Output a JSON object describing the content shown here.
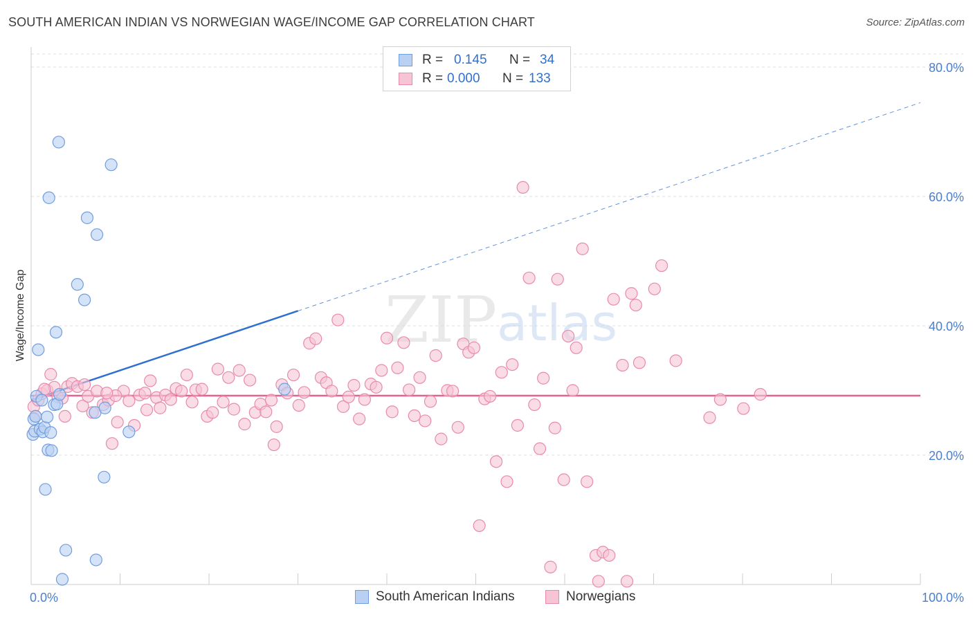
{
  "title": "SOUTH AMERICAN INDIAN VS NORWEGIAN WAGE/INCOME GAP CORRELATION CHART",
  "source": "Source: ZipAtlas.com",
  "watermark": {
    "zip": "ZIP",
    "atlas": "atlas"
  },
  "colors": {
    "blue_fill": "#b9d0f3",
    "blue_stroke": "#6f9ee0",
    "blue_line": "#2f6fd0",
    "pink_fill": "#f6c4d5",
    "pink_stroke": "#e88aab",
    "pink_line": "#e4628f",
    "grid": "#dddddd",
    "tick_text": "#4a7fd0"
  },
  "legend": {
    "rows": [
      {
        "r_label": "R =",
        "r_value": "0.145",
        "n_label": "N =",
        "n_value": "34"
      },
      {
        "r_label": "R =",
        "r_value": "0.000",
        "n_label": "N =",
        "n_value": "133"
      }
    ]
  },
  "bottom_legend": {
    "series1": "South American Indians",
    "series2": "Norwegians"
  },
  "chart_data": {
    "type": "scatter",
    "title": "SOUTH AMERICAN INDIAN VS NORWEGIAN WAGE/INCOME GAP CORRELATION CHART",
    "xlabel": "",
    "ylabel": "Wage/Income Gap",
    "xlim": [
      0,
      100
    ],
    "ylim": [
      0,
      83
    ],
    "x_tick_labels": [
      {
        "value": 0,
        "label": "0.0%"
      },
      {
        "value": 100,
        "label": "100.0%"
      }
    ],
    "y_tick_labels": [
      {
        "value": 20,
        "label": "20.0%"
      },
      {
        "value": 40,
        "label": "40.0%"
      },
      {
        "value": 60,
        "label": "60.0%"
      },
      {
        "value": 80,
        "label": "80.0%"
      }
    ],
    "series": [
      {
        "name": "South American Indians",
        "r": 0.145,
        "n": 34,
        "trend": {
          "x0": 0,
          "y0": 28.5,
          "x1": 30,
          "y1": 42.3,
          "dash_to_x": 100,
          "dash_to_y": 74.5
        },
        "points": [
          [
            0.2,
            23.2
          ],
          [
            0.3,
            25.6
          ],
          [
            0.4,
            23.7
          ],
          [
            0.5,
            26.0
          ],
          [
            0.6,
            29.1
          ],
          [
            0.8,
            36.3
          ],
          [
            1.0,
            24.0
          ],
          [
            1.2,
            28.5
          ],
          [
            1.3,
            23.6
          ],
          [
            1.5,
            24.3
          ],
          [
            1.6,
            14.7
          ],
          [
            1.8,
            25.9
          ],
          [
            1.9,
            20.8
          ],
          [
            2.0,
            59.8
          ],
          [
            2.2,
            23.5
          ],
          [
            2.3,
            20.7
          ],
          [
            2.6,
            27.8
          ],
          [
            2.8,
            39.0
          ],
          [
            2.9,
            27.9
          ],
          [
            3.1,
            68.4
          ],
          [
            3.2,
            29.4
          ],
          [
            3.5,
            0.8
          ],
          [
            3.9,
            5.3
          ],
          [
            5.2,
            46.4
          ],
          [
            6.0,
            44.0
          ],
          [
            6.3,
            56.7
          ],
          [
            7.2,
            26.6
          ],
          [
            7.3,
            3.8
          ],
          [
            7.4,
            54.1
          ],
          [
            8.2,
            16.6
          ],
          [
            8.3,
            27.3
          ],
          [
            9.0,
            64.9
          ],
          [
            11.0,
            23.6
          ],
          [
            28.5,
            30.2
          ]
        ]
      },
      {
        "name": "Norwegians",
        "r": 0.0,
        "n": 133,
        "trend": {
          "x0": 0,
          "y0": 29.2,
          "x1": 100,
          "y1": 29.2
        },
        "points": [
          [
            0.3,
            27.5
          ],
          [
            0.5,
            26.0
          ],
          [
            0.8,
            28.5
          ],
          [
            1.2,
            29.5
          ],
          [
            1.8,
            30.0
          ],
          [
            2.2,
            32.5
          ],
          [
            2.6,
            30.5
          ],
          [
            3.0,
            29.0
          ],
          [
            3.5,
            28.8
          ],
          [
            4.1,
            30.6
          ],
          [
            4.6,
            31.1
          ],
          [
            5.2,
            30.6
          ],
          [
            5.8,
            27.6
          ],
          [
            6.4,
            29.1
          ],
          [
            6.9,
            26.6
          ],
          [
            7.4,
            29.9
          ],
          [
            8.1,
            27.8
          ],
          [
            8.7,
            28.5
          ],
          [
            9.1,
            21.8
          ],
          [
            9.7,
            25.1
          ],
          [
            10.4,
            29.9
          ],
          [
            11.0,
            28.4
          ],
          [
            11.6,
            24.6
          ],
          [
            12.2,
            29.3
          ],
          [
            12.8,
            29.6
          ],
          [
            13.4,
            31.5
          ],
          [
            14.1,
            28.9
          ],
          [
            14.5,
            27.3
          ],
          [
            15.1,
            29.3
          ],
          [
            15.7,
            28.6
          ],
          [
            16.3,
            30.3
          ],
          [
            16.9,
            29.9
          ],
          [
            17.5,
            32.4
          ],
          [
            18.1,
            28.2
          ],
          [
            18.5,
            30.1
          ],
          [
            19.2,
            30.2
          ],
          [
            19.8,
            26.0
          ],
          [
            20.4,
            26.6
          ],
          [
            21.0,
            33.3
          ],
          [
            21.6,
            28.2
          ],
          [
            22.2,
            32.0
          ],
          [
            22.8,
            27.1
          ],
          [
            23.4,
            33.1
          ],
          [
            24.0,
            24.8
          ],
          [
            24.6,
            31.6
          ],
          [
            25.2,
            26.6
          ],
          [
            25.8,
            27.9
          ],
          [
            26.4,
            26.7
          ],
          [
            27.0,
            28.5
          ],
          [
            27.3,
            21.6
          ],
          [
            27.6,
            24.4
          ],
          [
            28.2,
            30.9
          ],
          [
            28.8,
            29.6
          ],
          [
            29.5,
            32.4
          ],
          [
            30.1,
            27.7
          ],
          [
            30.7,
            29.7
          ],
          [
            31.3,
            37.3
          ],
          [
            32.0,
            38.0
          ],
          [
            32.6,
            32.0
          ],
          [
            33.2,
            31.2
          ],
          [
            33.8,
            29.9
          ],
          [
            34.5,
            40.9
          ],
          [
            35.1,
            27.5
          ],
          [
            35.7,
            29.0
          ],
          [
            36.3,
            30.8
          ],
          [
            36.9,
            25.6
          ],
          [
            37.5,
            28.6
          ],
          [
            38.2,
            31.0
          ],
          [
            38.8,
            30.5
          ],
          [
            39.4,
            33.1
          ],
          [
            40.0,
            38.1
          ],
          [
            40.6,
            26.7
          ],
          [
            41.2,
            33.5
          ],
          [
            41.9,
            37.4
          ],
          [
            42.5,
            30.1
          ],
          [
            43.1,
            26.1
          ],
          [
            43.7,
            32.0
          ],
          [
            44.3,
            25.3
          ],
          [
            44.9,
            28.3
          ],
          [
            45.5,
            35.4
          ],
          [
            46.1,
            22.5
          ],
          [
            46.8,
            30.0
          ],
          [
            47.4,
            29.9
          ],
          [
            48.0,
            24.3
          ],
          [
            48.6,
            37.2
          ],
          [
            49.2,
            35.9
          ],
          [
            49.8,
            36.6
          ],
          [
            50.4,
            9.1
          ],
          [
            51.0,
            28.7
          ],
          [
            51.6,
            29.1
          ],
          [
            52.3,
            19.0
          ],
          [
            52.9,
            32.8
          ],
          [
            53.5,
            15.9
          ],
          [
            54.1,
            34.0
          ],
          [
            54.7,
            24.6
          ],
          [
            55.3,
            61.4
          ],
          [
            56.0,
            47.4
          ],
          [
            56.6,
            27.8
          ],
          [
            57.2,
            21.0
          ],
          [
            57.6,
            31.9
          ],
          [
            58.4,
            2.7
          ],
          [
            58.9,
            24.2
          ],
          [
            59.2,
            47.2
          ],
          [
            59.9,
            16.2
          ],
          [
            60.4,
            38.4
          ],
          [
            60.9,
            30.0
          ],
          [
            61.3,
            36.6
          ],
          [
            62.0,
            51.9
          ],
          [
            62.5,
            15.9
          ],
          [
            63.5,
            4.5
          ],
          [
            63.8,
            0.5
          ],
          [
            64.3,
            5.0
          ],
          [
            65.0,
            4.5
          ],
          [
            65.5,
            44.1
          ],
          [
            66.5,
            33.9
          ],
          [
            67.0,
            0.5
          ],
          [
            67.5,
            45.0
          ],
          [
            68.0,
            43.2
          ],
          [
            68.4,
            34.3
          ],
          [
            70.1,
            45.7
          ],
          [
            70.9,
            49.3
          ],
          [
            72.5,
            34.6
          ],
          [
            76.3,
            25.8
          ],
          [
            77.5,
            28.6
          ],
          [
            80.1,
            27.2
          ],
          [
            82.0,
            29.4
          ],
          [
            1.5,
            30.2
          ],
          [
            6.0,
            30.9
          ],
          [
            3.8,
            26.0
          ],
          [
            9.5,
            29.2
          ],
          [
            13.0,
            27.0
          ],
          [
            8.5,
            29.6
          ]
        ]
      }
    ]
  }
}
